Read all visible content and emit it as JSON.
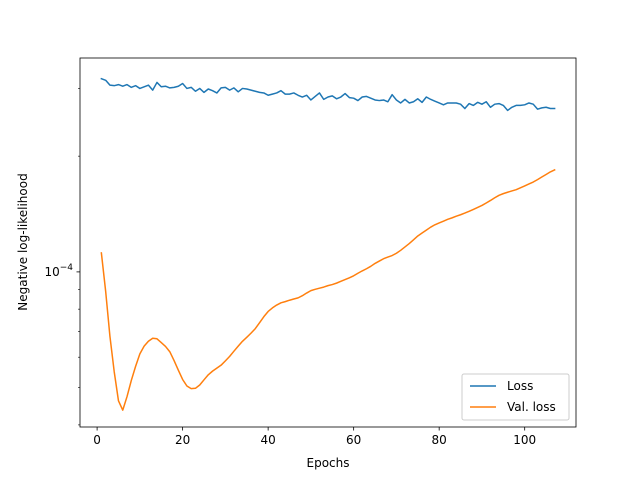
{
  "chart_data": {
    "type": "line",
    "xlabel": "Epochs",
    "ylabel": "Negative log-likelihood",
    "y_scale": "log",
    "grid": false,
    "legend_position": "lower-right",
    "xlim": [
      -4,
      112
    ],
    "ylim": [
      3.95e-05,
      0.00036
    ],
    "x_ticks": [
      0,
      20,
      40,
      60,
      80,
      100
    ],
    "x_tick_labels": [
      "0",
      "20",
      "40",
      "60",
      "80",
      "100"
    ],
    "y_ticks": [
      0.0001
    ],
    "y_tick_labels": [
      "10−4"
    ],
    "series": [
      {
        "name": "Loss",
        "color": "#1f77b4",
        "points": [
          [
            1,
            0.000318
          ],
          [
            2,
            0.000315
          ],
          [
            3,
            0.000306
          ],
          [
            4,
            0.000305
          ],
          [
            5,
            0.000307
          ],
          [
            6,
            0.000304
          ],
          [
            7,
            0.000307
          ],
          [
            8,
            0.000302
          ],
          [
            9,
            0.000305
          ],
          [
            10,
            0.0003
          ],
          [
            11,
            0.000303
          ],
          [
            12,
            0.000306
          ],
          [
            13,
            0.000297
          ],
          [
            14,
            0.000311
          ],
          [
            15,
            0.000303
          ],
          [
            16,
            0.000304
          ],
          [
            17,
            0.000301
          ],
          [
            18,
            0.000302
          ],
          [
            19,
            0.000304
          ],
          [
            20,
            0.000309
          ],
          [
            21,
            0.0003
          ],
          [
            22,
            0.000302
          ],
          [
            23,
            0.000295
          ],
          [
            24,
            0.0003
          ],
          [
            25,
            0.000293
          ],
          [
            26,
            0.000299
          ],
          [
            27,
            0.000296
          ],
          [
            28,
            0.000292
          ],
          [
            29,
            0.000301
          ],
          [
            30,
            0.000302
          ],
          [
            31,
            0.000297
          ],
          [
            32,
            0.000301
          ],
          [
            33,
            0.000294
          ],
          [
            34,
            0.0003
          ],
          [
            35,
            0.000299
          ],
          [
            36,
            0.000297
          ],
          [
            37,
            0.000295
          ],
          [
            38,
            0.000293
          ],
          [
            39,
            0.000292
          ],
          [
            40,
            0.000288
          ],
          [
            41,
            0.00029
          ],
          [
            42,
            0.000292
          ],
          [
            43,
            0.000296
          ],
          [
            44,
            0.00029
          ],
          [
            45,
            0.00029
          ],
          [
            46,
            0.000292
          ],
          [
            47,
            0.000288
          ],
          [
            48,
            0.000285
          ],
          [
            49,
            0.000288
          ],
          [
            50,
            0.00028
          ],
          [
            51,
            0.000286
          ],
          [
            52,
            0.000292
          ],
          [
            53,
            0.000281
          ],
          [
            54,
            0.000285
          ],
          [
            55,
            0.000287
          ],
          [
            56,
            0.000282
          ],
          [
            57,
            0.000285
          ],
          [
            58,
            0.000291
          ],
          [
            59,
            0.000284
          ],
          [
            60,
            0.000283
          ],
          [
            61,
            0.000279
          ],
          [
            62,
            0.000285
          ],
          [
            63,
            0.000286
          ],
          [
            64,
            0.000283
          ],
          [
            65,
            0.00028
          ],
          [
            66,
            0.000279
          ],
          [
            67,
            0.00028
          ],
          [
            68,
            0.000277
          ],
          [
            69,
            0.000289
          ],
          [
            70,
            0.00028
          ],
          [
            71,
            0.000275
          ],
          [
            72,
            0.000281
          ],
          [
            73,
            0.000275
          ],
          [
            74,
            0.000277
          ],
          [
            75,
            0.000282
          ],
          [
            76,
            0.000276
          ],
          [
            77,
            0.000285
          ],
          [
            78,
            0.000281
          ],
          [
            79,
            0.000278
          ],
          [
            80,
            0.000275
          ],
          [
            81,
            0.000272
          ],
          [
            82,
            0.000275
          ],
          [
            83,
            0.000275
          ],
          [
            84,
            0.000275
          ],
          [
            85,
            0.000273
          ],
          [
            86,
            0.000266
          ],
          [
            87,
            0.000274
          ],
          [
            88,
            0.000271
          ],
          [
            89,
            0.000276
          ],
          [
            90,
            0.000273
          ],
          [
            91,
            0.000277
          ],
          [
            92,
            0.000268
          ],
          [
            93,
            0.000273
          ],
          [
            94,
            0.000274
          ],
          [
            95,
            0.000271
          ],
          [
            96,
            0.000263
          ],
          [
            97,
            0.000268
          ],
          [
            98,
            0.000271
          ],
          [
            99,
            0.000271
          ],
          [
            100,
            0.000272
          ],
          [
            101,
            0.000275
          ],
          [
            102,
            0.000273
          ],
          [
            103,
            0.000265
          ],
          [
            104,
            0.000267
          ],
          [
            105,
            0.000268
          ],
          [
            106,
            0.000266
          ],
          [
            107,
            0.000266
          ]
        ]
      },
      {
        "name": "Val. loss",
        "color": "#ff7f0e",
        "points": [
          [
            1,
            0.000112
          ],
          [
            2,
            8.9e-05
          ],
          [
            3,
            6.8e-05
          ],
          [
            4,
            5.5e-05
          ],
          [
            5,
            4.62e-05
          ],
          [
            6,
            4.37e-05
          ],
          [
            7,
            4.74e-05
          ],
          [
            8,
            5.22e-05
          ],
          [
            9,
            5.68e-05
          ],
          [
            10,
            6.12e-05
          ],
          [
            11,
            6.41e-05
          ],
          [
            12,
            6.6e-05
          ],
          [
            13,
            6.72e-05
          ],
          [
            14,
            6.7e-05
          ],
          [
            15,
            6.55e-05
          ],
          [
            16,
            6.4e-05
          ],
          [
            17,
            6.2e-05
          ],
          [
            18,
            5.88e-05
          ],
          [
            19,
            5.55e-05
          ],
          [
            20,
            5.25e-05
          ],
          [
            21,
            5.05e-05
          ],
          [
            22,
            4.97e-05
          ],
          [
            23,
            4.98e-05
          ],
          [
            24,
            5.08e-05
          ],
          [
            25,
            5.24e-05
          ],
          [
            26,
            5.4e-05
          ],
          [
            27,
            5.52e-05
          ],
          [
            28,
            5.62e-05
          ],
          [
            29,
            5.72e-05
          ],
          [
            30,
            5.87e-05
          ],
          [
            31,
            6.03e-05
          ],
          [
            32,
            6.22e-05
          ],
          [
            33,
            6.41e-05
          ],
          [
            34,
            6.6e-05
          ],
          [
            35,
            6.76e-05
          ],
          [
            36,
            6.93e-05
          ],
          [
            37,
            7.12e-05
          ],
          [
            38,
            7.38e-05
          ],
          [
            39,
            7.65e-05
          ],
          [
            40,
            7.89e-05
          ],
          [
            41,
            8.06e-05
          ],
          [
            42,
            8.2e-05
          ],
          [
            43,
            8.31e-05
          ],
          [
            44,
            8.37e-05
          ],
          [
            45,
            8.44e-05
          ],
          [
            46,
            8.5e-05
          ],
          [
            47,
            8.56e-05
          ],
          [
            48,
            8.67e-05
          ],
          [
            49,
            8.81e-05
          ],
          [
            50,
            8.94e-05
          ],
          [
            51,
            9.01e-05
          ],
          [
            52,
            9.07e-05
          ],
          [
            53,
            9.13e-05
          ],
          [
            54,
            9.21e-05
          ],
          [
            55,
            9.27e-05
          ],
          [
            56,
            9.35e-05
          ],
          [
            57,
            9.45e-05
          ],
          [
            58,
            9.55e-05
          ],
          [
            59,
            9.65e-05
          ],
          [
            60,
            9.77e-05
          ],
          [
            61,
            9.92e-05
          ],
          [
            62,
            0.0001006
          ],
          [
            63,
            0.0001019
          ],
          [
            64,
            0.0001034
          ],
          [
            65,
            0.0001052
          ],
          [
            66,
            0.0001067
          ],
          [
            67,
            0.0001082
          ],
          [
            68,
            0.0001093
          ],
          [
            69,
            0.0001103
          ],
          [
            70,
            0.0001118
          ],
          [
            71,
            0.0001138
          ],
          [
            72,
            0.0001161
          ],
          [
            73,
            0.0001185
          ],
          [
            74,
            0.0001212
          ],
          [
            75,
            0.000124
          ],
          [
            76,
            0.0001262
          ],
          [
            77,
            0.0001284
          ],
          [
            78,
            0.0001307
          ],
          [
            79,
            0.0001326
          ],
          [
            80,
            0.0001341
          ],
          [
            81,
            0.0001355
          ],
          [
            82,
            0.000137
          ],
          [
            83,
            0.0001382
          ],
          [
            84,
            0.0001396
          ],
          [
            85,
            0.0001408
          ],
          [
            86,
            0.0001422
          ],
          [
            87,
            0.0001437
          ],
          [
            88,
            0.0001454
          ],
          [
            89,
            0.0001471
          ],
          [
            90,
            0.0001489
          ],
          [
            91,
            0.0001511
          ],
          [
            92,
            0.0001534
          ],
          [
            93,
            0.0001559
          ],
          [
            94,
            0.0001582
          ],
          [
            95,
            0.0001598
          ],
          [
            96,
            0.0001611
          ],
          [
            97,
            0.0001624
          ],
          [
            98,
            0.0001636
          ],
          [
            99,
            0.0001654
          ],
          [
            100,
            0.0001673
          ],
          [
            101,
            0.0001693
          ],
          [
            102,
            0.0001713
          ],
          [
            103,
            0.0001738
          ],
          [
            104,
            0.0001765
          ],
          [
            105,
            0.0001792
          ],
          [
            106,
            0.000182
          ],
          [
            107,
            0.0001842
          ]
        ]
      }
    ]
  }
}
